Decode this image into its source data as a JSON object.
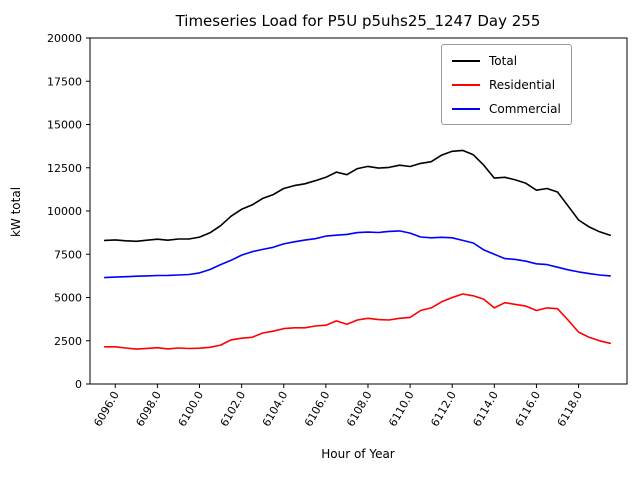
{
  "chart_data": {
    "type": "line",
    "title": "Timeseries Load for P5U p5uhs25_1247  Day 255",
    "xlabel": "Hour of Year",
    "ylabel": "kW total",
    "xlim": [
      6094.8,
      6120.3
    ],
    "ylim": [
      0,
      20000
    ],
    "grid": false,
    "legend_position": "top-right",
    "xtick_values": [
      6096,
      6098,
      6100,
      6102,
      6104,
      6106,
      6108,
      6110,
      6112,
      6114,
      6116,
      6118
    ],
    "xtick_labels": [
      "6096.0",
      "6098.0",
      "6100.0",
      "6102.0",
      "6104.0",
      "6106.0",
      "6108.0",
      "6110.0",
      "6112.0",
      "6114.0",
      "6116.0",
      "6118.0"
    ],
    "ytick_values": [
      0,
      2500,
      5000,
      7500,
      10000,
      12500,
      15000,
      17500,
      20000
    ],
    "ytick_labels": [
      "0",
      "2500",
      "5000",
      "7500",
      "10000",
      "12500",
      "15000",
      "17500",
      "20000"
    ],
    "x": [
      6095.5,
      6096.0,
      6096.5,
      6097.0,
      6097.5,
      6098.0,
      6098.5,
      6099.0,
      6099.5,
      6100.0,
      6100.5,
      6101.0,
      6101.5,
      6102.0,
      6102.5,
      6103.0,
      6103.5,
      6104.0,
      6104.5,
      6105.0,
      6105.5,
      6106.0,
      6106.5,
      6107.0,
      6107.5,
      6108.0,
      6108.5,
      6109.0,
      6109.5,
      6110.0,
      6110.5,
      6111.0,
      6111.5,
      6112.0,
      6112.5,
      6113.0,
      6113.5,
      6114.0,
      6114.5,
      6115.0,
      6115.5,
      6116.0,
      6116.5,
      6117.0,
      6117.5,
      6118.0,
      6118.5,
      6119.0,
      6119.5
    ],
    "series": [
      {
        "name": "Total",
        "color": "#000000",
        "values": [
          8300,
          8330,
          8280,
          8250,
          8310,
          8370,
          8310,
          8380,
          8380,
          8490,
          8740,
          9150,
          9700,
          10100,
          10350,
          10730,
          10950,
          11300,
          11470,
          11570,
          11750,
          11950,
          12250,
          12100,
          12450,
          12580,
          12480,
          12520,
          12650,
          12570,
          12750,
          12850,
          13230,
          13450,
          13500,
          13250,
          12650,
          11900,
          11950,
          11800,
          11600,
          11200,
          11300,
          11100,
          10300,
          9480,
          9080,
          8800,
          8600
        ]
      },
      {
        "name": "Residential",
        "color": "#ff0000",
        "values": [
          2150,
          2150,
          2080,
          2020,
          2060,
          2100,
          2030,
          2080,
          2050,
          2070,
          2120,
          2250,
          2550,
          2650,
          2700,
          2950,
          3050,
          3200,
          3250,
          3250,
          3350,
          3400,
          3650,
          3450,
          3700,
          3800,
          3720,
          3700,
          3800,
          3850,
          4250,
          4400,
          4750,
          5000,
          5200,
          5100,
          4900,
          4400,
          4700,
          4600,
          4500,
          4250,
          4400,
          4350,
          3700,
          3000,
          2700,
          2500,
          2350
        ]
      },
      {
        "name": "Commercial",
        "color": "#0000ff",
        "values": [
          6150,
          6180,
          6200,
          6230,
          6250,
          6270,
          6280,
          6300,
          6330,
          6420,
          6620,
          6900,
          7150,
          7450,
          7650,
          7780,
          7900,
          8100,
          8220,
          8320,
          8400,
          8550,
          8600,
          8650,
          8750,
          8780,
          8760,
          8820,
          8850,
          8720,
          8500,
          8450,
          8480,
          8450,
          8300,
          8150,
          7750,
          7500,
          7250,
          7200,
          7100,
          6950,
          6900,
          6750,
          6600,
          6480,
          6380,
          6300,
          6250
        ]
      }
    ]
  }
}
